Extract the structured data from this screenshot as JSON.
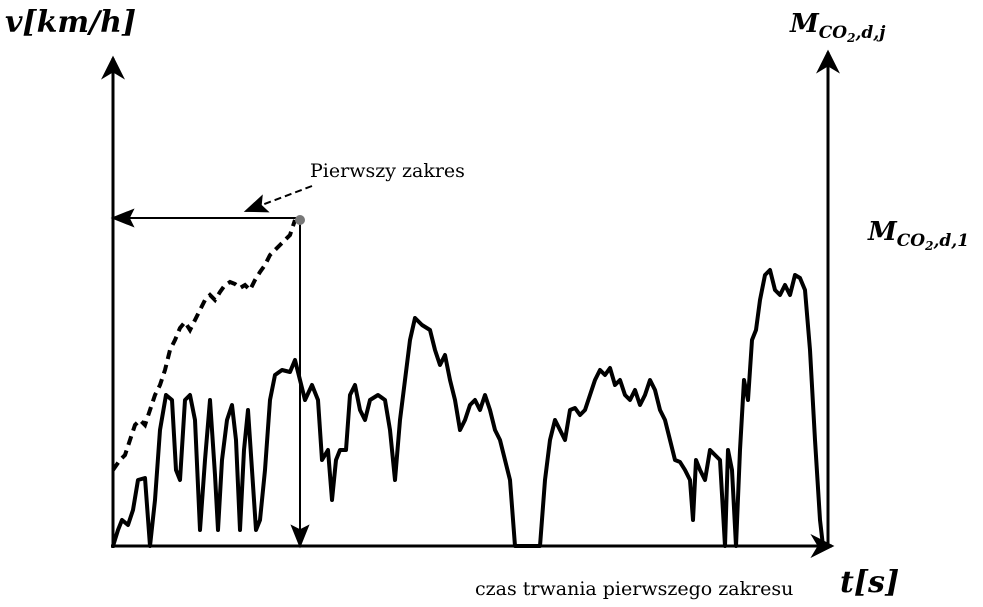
{
  "left_axis_label": "v[km/h]",
  "right_axis_label": {
    "symbol": "M",
    "subscript": [
      "CO",
      "2",
      ",d,j"
    ]
  },
  "level_label": {
    "symbol": "M",
    "subscript": [
      "CO",
      "2",
      ",d,1"
    ]
  },
  "annotation": "Pierwszy zakres",
  "duration_label": "czas trwania pierwszego zakresu",
  "time_axis_label": "t[s]"
}
